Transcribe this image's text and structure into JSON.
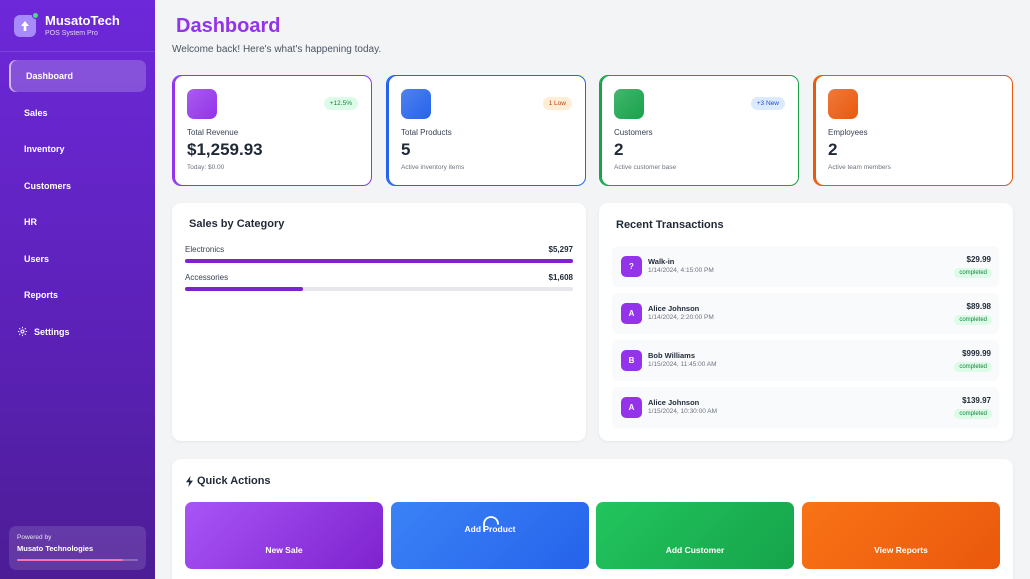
{
  "brand": {
    "name": "MusatoTech",
    "subtitle": "POS System Pro"
  },
  "nav": [
    {
      "label": "Dashboard",
      "active": true
    },
    {
      "label": "Sales"
    },
    {
      "label": "Inventory"
    },
    {
      "label": "Customers"
    },
    {
      "label": "HR"
    },
    {
      "label": "Users"
    },
    {
      "label": "Reports"
    },
    {
      "label": "Settings",
      "icon": "gear-icon"
    }
  ],
  "powered": {
    "label": "Powered by",
    "company": "Musato Technologies",
    "progress": 0.88
  },
  "header": {
    "title": "Dashboard",
    "subtitle": "Welcome back! Here's what's happening today."
  },
  "stats": [
    {
      "label": "Total Revenue",
      "value": "$1,259.93",
      "footnote": "Today: $0.00",
      "badge": "+12.5%",
      "color": "#9333ea"
    },
    {
      "label": "Total Products",
      "value": "5",
      "footnote": "Active inventory items",
      "badge": "1 Low",
      "color": "#2563eb"
    },
    {
      "label": "Customers",
      "value": "2",
      "footnote": "Active customer base",
      "badge": "+3 New",
      "color": "#16a34a"
    },
    {
      "label": "Employees",
      "value": "2",
      "footnote": "Active team members",
      "badge": "",
      "color": "#ea580c"
    }
  ],
  "sales_by_category": {
    "title": "Sales by Category",
    "items": [
      {
        "name": "Electronics",
        "amount": "$5,297",
        "share": 1.0
      },
      {
        "name": "Accessories",
        "amount": "$1,608",
        "share": 0.304
      }
    ]
  },
  "recent_transactions": {
    "title": "Recent Transactions",
    "items": [
      {
        "initial": "?",
        "name": "Walk-in",
        "time": "1/14/2024, 4:15:00 PM",
        "amount": "$29.99",
        "status": "completed"
      },
      {
        "initial": "A",
        "name": "Alice Johnson",
        "time": "1/14/2024, 2:20:00 PM",
        "amount": "$89.98",
        "status": "completed"
      },
      {
        "initial": "B",
        "name": "Bob Williams",
        "time": "1/15/2024, 11:45:00 AM",
        "amount": "$999.99",
        "status": "completed"
      },
      {
        "initial": "A",
        "name": "Alice Johnson",
        "time": "1/15/2024, 10:30:00 AM",
        "amount": "$139.97",
        "status": "completed"
      }
    ]
  },
  "quick_actions": {
    "title": "Quick Actions",
    "icon": "lightning-icon",
    "items": [
      {
        "label": "New Sale"
      },
      {
        "label": "Add Product"
      },
      {
        "label": "Add Customer"
      },
      {
        "label": "View Reports"
      }
    ]
  }
}
